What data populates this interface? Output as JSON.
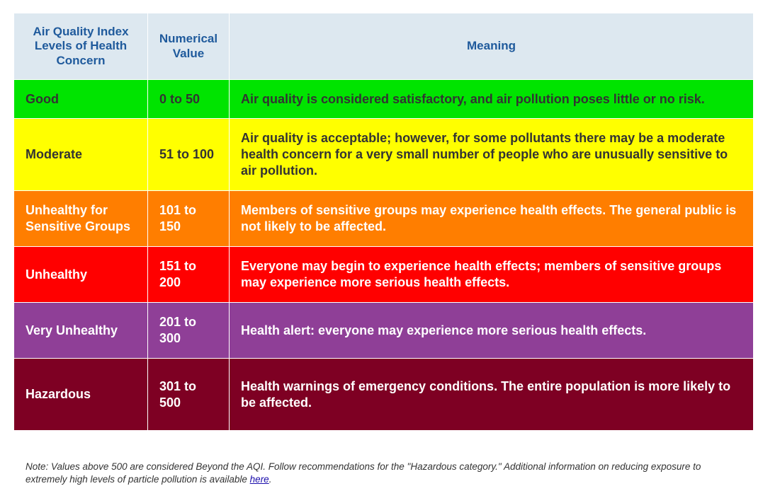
{
  "table": {
    "headers": {
      "level": "Air Quality Index Levels of Health Concern",
      "value": "Numerical Value",
      "meaning": "Meaning"
    },
    "rows": [
      {
        "level": "Good",
        "value": "0 to 50",
        "meaning": "Air quality is considered satisfactory, and air pollution poses little or no risk.",
        "color": "#00e400"
      },
      {
        "level": "Moderate",
        "value": "51 to 100",
        "meaning": "Air quality is acceptable; however, for some pollutants there may be a moderate health concern for a very small number of people who are unusually sensitive to air pollution.",
        "color": "#ffff00"
      },
      {
        "level": "Unhealthy for Sensitive Groups",
        "value": "101 to 150",
        "meaning": "Members of sensitive groups may experience health effects. The general public is not likely to be affected.",
        "color": "#ff7e00"
      },
      {
        "level": "Unhealthy",
        "value": "151 to 200",
        "meaning": "Everyone may begin to experience health effects; members of sensitive groups may experience more serious health effects.",
        "color": "#ff0000"
      },
      {
        "level": "Very Unhealthy",
        "value": "201 to 300",
        "meaning": "Health alert: everyone may experience more serious health effects.",
        "color": "#8f3f97"
      },
      {
        "level": "Hazardous",
        "value": "301 to 500",
        "meaning": "Health warnings of emergency conditions. The entire population is more likely to be affected.",
        "color": "#7e0023"
      }
    ]
  },
  "note": {
    "text": "Note: Values above 500 are considered Beyond the AQI. Follow recommendations for the \"Hazardous category.\" Additional information on reducing exposure to extremely high levels of particle pollution is available ",
    "link_text": "here",
    "end": "."
  }
}
